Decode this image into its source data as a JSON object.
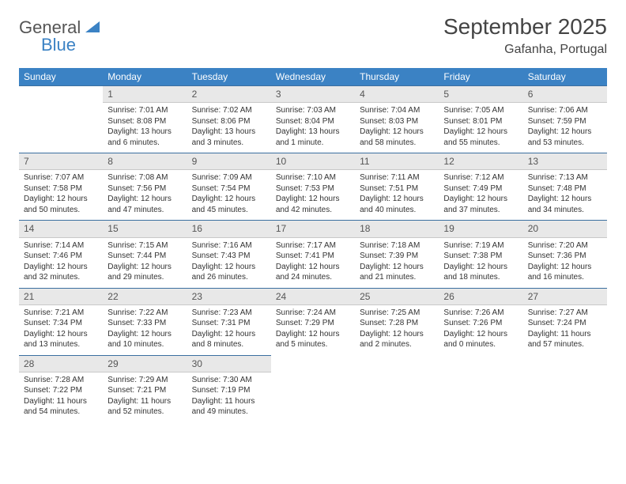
{
  "logo": {
    "word1": "General",
    "word2": "Blue"
  },
  "title": "September 2025",
  "location": "Gafanha, Portugal",
  "header_bg": "#3b82c4",
  "daynum_bg": "#e8e8e8",
  "border_color": "#3b6fa0",
  "weekdays": [
    "Sunday",
    "Monday",
    "Tuesday",
    "Wednesday",
    "Thursday",
    "Friday",
    "Saturday"
  ],
  "weeks": [
    [
      null,
      {
        "n": "1",
        "sunrise": "7:01 AM",
        "sunset": "8:08 PM",
        "daylight": "13 hours and 6 minutes."
      },
      {
        "n": "2",
        "sunrise": "7:02 AM",
        "sunset": "8:06 PM",
        "daylight": "13 hours and 3 minutes."
      },
      {
        "n": "3",
        "sunrise": "7:03 AM",
        "sunset": "8:04 PM",
        "daylight": "13 hours and 1 minute."
      },
      {
        "n": "4",
        "sunrise": "7:04 AM",
        "sunset": "8:03 PM",
        "daylight": "12 hours and 58 minutes."
      },
      {
        "n": "5",
        "sunrise": "7:05 AM",
        "sunset": "8:01 PM",
        "daylight": "12 hours and 55 minutes."
      },
      {
        "n": "6",
        "sunrise": "7:06 AM",
        "sunset": "7:59 PM",
        "daylight": "12 hours and 53 minutes."
      }
    ],
    [
      {
        "n": "7",
        "sunrise": "7:07 AM",
        "sunset": "7:58 PM",
        "daylight": "12 hours and 50 minutes."
      },
      {
        "n": "8",
        "sunrise": "7:08 AM",
        "sunset": "7:56 PM",
        "daylight": "12 hours and 47 minutes."
      },
      {
        "n": "9",
        "sunrise": "7:09 AM",
        "sunset": "7:54 PM",
        "daylight": "12 hours and 45 minutes."
      },
      {
        "n": "10",
        "sunrise": "7:10 AM",
        "sunset": "7:53 PM",
        "daylight": "12 hours and 42 minutes."
      },
      {
        "n": "11",
        "sunrise": "7:11 AM",
        "sunset": "7:51 PM",
        "daylight": "12 hours and 40 minutes."
      },
      {
        "n": "12",
        "sunrise": "7:12 AM",
        "sunset": "7:49 PM",
        "daylight": "12 hours and 37 minutes."
      },
      {
        "n": "13",
        "sunrise": "7:13 AM",
        "sunset": "7:48 PM",
        "daylight": "12 hours and 34 minutes."
      }
    ],
    [
      {
        "n": "14",
        "sunrise": "7:14 AM",
        "sunset": "7:46 PM",
        "daylight": "12 hours and 32 minutes."
      },
      {
        "n": "15",
        "sunrise": "7:15 AM",
        "sunset": "7:44 PM",
        "daylight": "12 hours and 29 minutes."
      },
      {
        "n": "16",
        "sunrise": "7:16 AM",
        "sunset": "7:43 PM",
        "daylight": "12 hours and 26 minutes."
      },
      {
        "n": "17",
        "sunrise": "7:17 AM",
        "sunset": "7:41 PM",
        "daylight": "12 hours and 24 minutes."
      },
      {
        "n": "18",
        "sunrise": "7:18 AM",
        "sunset": "7:39 PM",
        "daylight": "12 hours and 21 minutes."
      },
      {
        "n": "19",
        "sunrise": "7:19 AM",
        "sunset": "7:38 PM",
        "daylight": "12 hours and 18 minutes."
      },
      {
        "n": "20",
        "sunrise": "7:20 AM",
        "sunset": "7:36 PM",
        "daylight": "12 hours and 16 minutes."
      }
    ],
    [
      {
        "n": "21",
        "sunrise": "7:21 AM",
        "sunset": "7:34 PM",
        "daylight": "12 hours and 13 minutes."
      },
      {
        "n": "22",
        "sunrise": "7:22 AM",
        "sunset": "7:33 PM",
        "daylight": "12 hours and 10 minutes."
      },
      {
        "n": "23",
        "sunrise": "7:23 AM",
        "sunset": "7:31 PM",
        "daylight": "12 hours and 8 minutes."
      },
      {
        "n": "24",
        "sunrise": "7:24 AM",
        "sunset": "7:29 PM",
        "daylight": "12 hours and 5 minutes."
      },
      {
        "n": "25",
        "sunrise": "7:25 AM",
        "sunset": "7:28 PM",
        "daylight": "12 hours and 2 minutes."
      },
      {
        "n": "26",
        "sunrise": "7:26 AM",
        "sunset": "7:26 PM",
        "daylight": "12 hours and 0 minutes."
      },
      {
        "n": "27",
        "sunrise": "7:27 AM",
        "sunset": "7:24 PM",
        "daylight": "11 hours and 57 minutes."
      }
    ],
    [
      {
        "n": "28",
        "sunrise": "7:28 AM",
        "sunset": "7:22 PM",
        "daylight": "11 hours and 54 minutes."
      },
      {
        "n": "29",
        "sunrise": "7:29 AM",
        "sunset": "7:21 PM",
        "daylight": "11 hours and 52 minutes."
      },
      {
        "n": "30",
        "sunrise": "7:30 AM",
        "sunset": "7:19 PM",
        "daylight": "11 hours and 49 minutes."
      },
      null,
      null,
      null,
      null
    ]
  ],
  "labels": {
    "sunrise": "Sunrise:",
    "sunset": "Sunset:",
    "daylight": "Daylight:"
  }
}
